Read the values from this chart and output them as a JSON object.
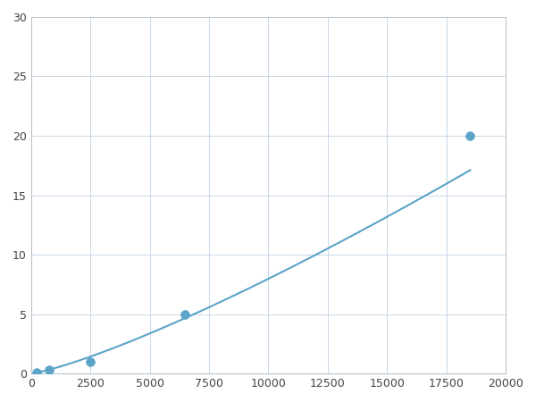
{
  "x_points": [
    250,
    750,
    2500,
    6500,
    18500
  ],
  "y_points": [
    0.1,
    0.3,
    1.0,
    5.0,
    20.0
  ],
  "line_color": "#5BA3C9",
  "marker_color": "#5BA3C9",
  "marker_size": 7,
  "line_width": 1.5,
  "xlim": [
    0,
    20000
  ],
  "ylim": [
    0,
    30
  ],
  "xticks": [
    0,
    2500,
    5000,
    7500,
    10000,
    12500,
    15000,
    17500,
    20000
  ],
  "yticks": [
    0,
    5,
    10,
    15,
    20,
    25,
    30
  ],
  "grid_color": "#c8d8e8",
  "background_color": "#ffffff",
  "figure_bg": "#ffffff"
}
